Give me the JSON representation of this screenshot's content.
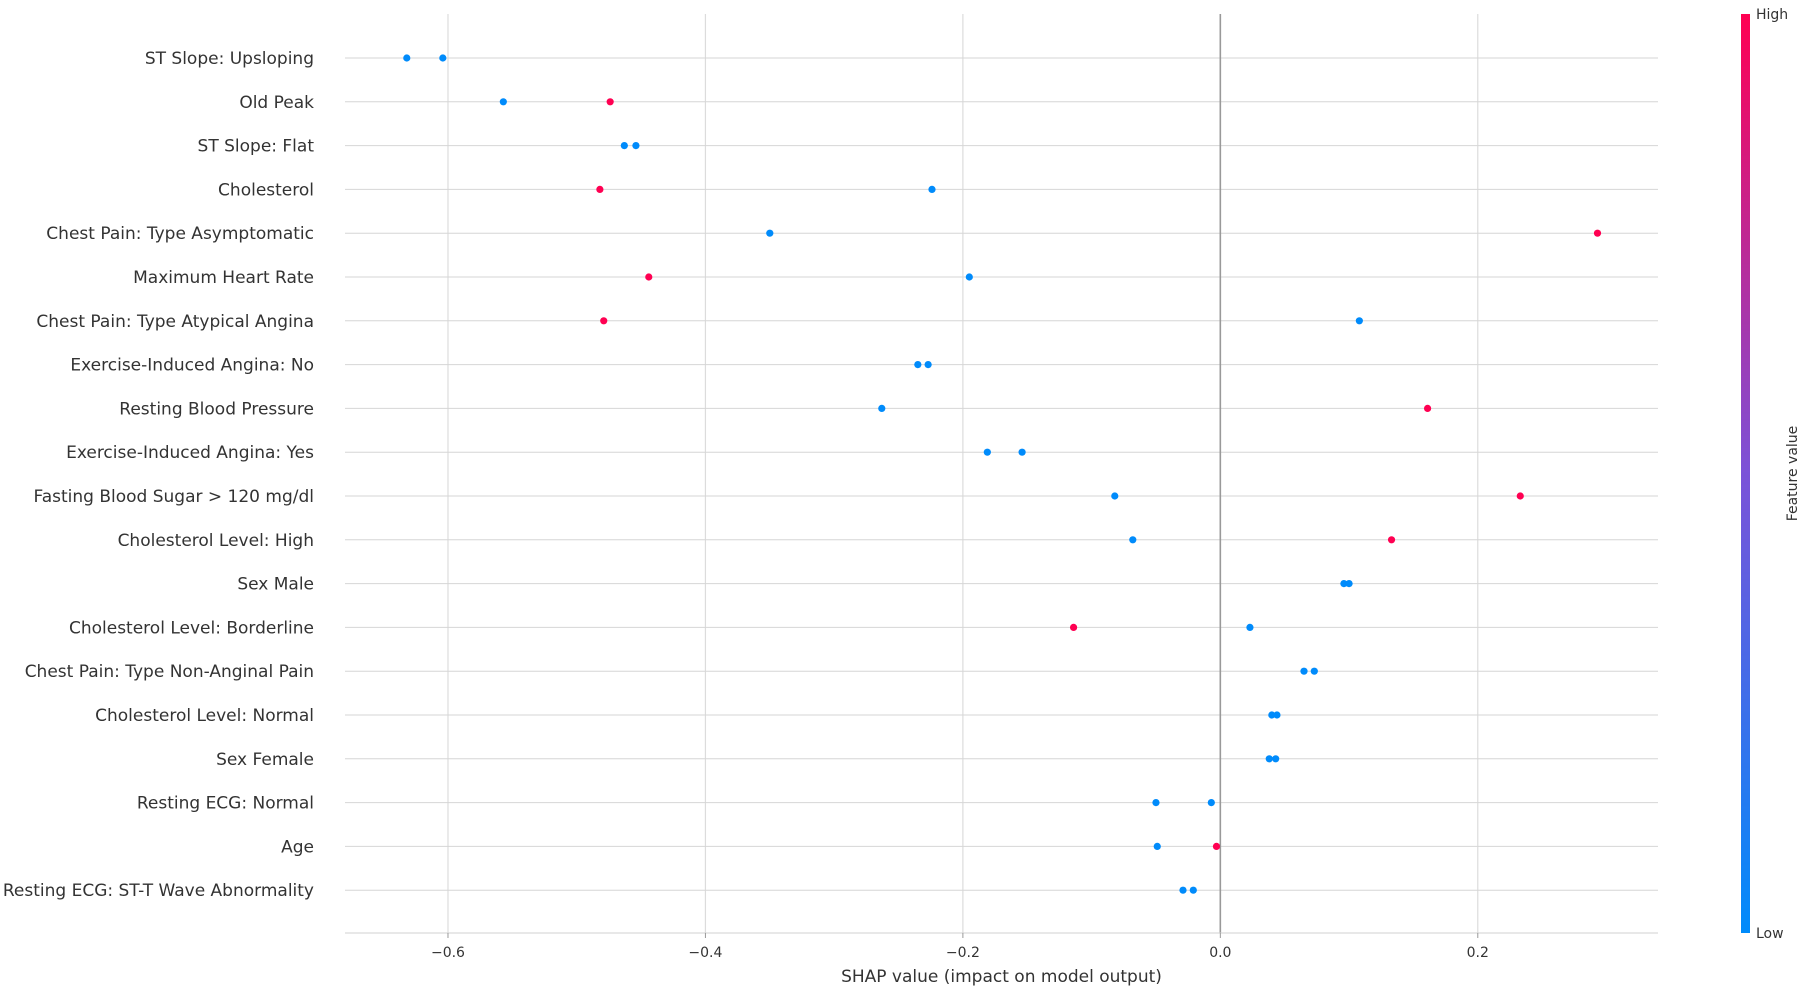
{
  "chart_data": {
    "type": "scatter",
    "xlabel": "SHAP value (impact on model output)",
    "xlim": [
      -0.68,
      0.34
    ],
    "xticks": [
      -0.6,
      -0.4,
      -0.2,
      0.0,
      0.2
    ],
    "xtick_labels": [
      "−0.6",
      "−0.4",
      "−0.2",
      "0.0",
      "0.2"
    ],
    "grid": true,
    "zero_line": 0.0,
    "colorbar": {
      "label": "Feature value",
      "high_label": "High",
      "low_label": "Low",
      "high_color": "#ff0052",
      "low_color": "#008bfb",
      "mid_color": "#7b52d8"
    },
    "features": [
      {
        "name": "ST Slope: Upsloping",
        "points": [
          {
            "x": -0.632,
            "v": 0
          },
          {
            "x": -0.604,
            "v": 0
          }
        ]
      },
      {
        "name": "Old Peak",
        "points": [
          {
            "x": -0.557,
            "v": 0
          },
          {
            "x": -0.474,
            "v": 1
          }
        ]
      },
      {
        "name": "ST Slope: Flat",
        "points": [
          {
            "x": -0.463,
            "v": 0
          },
          {
            "x": -0.454,
            "v": 0
          }
        ]
      },
      {
        "name": "Cholesterol",
        "points": [
          {
            "x": -0.482,
            "v": 1
          },
          {
            "x": -0.224,
            "v": 0
          }
        ]
      },
      {
        "name": "Chest Pain: Type Asymptomatic",
        "points": [
          {
            "x": -0.35,
            "v": 0
          },
          {
            "x": 0.293,
            "v": 1
          }
        ]
      },
      {
        "name": "Maximum Heart Rate",
        "points": [
          {
            "x": -0.444,
            "v": 1
          },
          {
            "x": -0.195,
            "v": 0
          }
        ]
      },
      {
        "name": "Chest Pain: Type Atypical Angina",
        "points": [
          {
            "x": -0.479,
            "v": 1
          },
          {
            "x": 0.108,
            "v": 0
          }
        ]
      },
      {
        "name": "Exercise-Induced Angina: No",
        "points": [
          {
            "x": -0.235,
            "v": 0
          },
          {
            "x": -0.227,
            "v": 0
          }
        ]
      },
      {
        "name": "Resting Blood Pressure",
        "points": [
          {
            "x": -0.263,
            "v": 0
          },
          {
            "x": 0.161,
            "v": 1
          }
        ]
      },
      {
        "name": "Exercise-Induced Angina: Yes",
        "points": [
          {
            "x": -0.181,
            "v": 0
          },
          {
            "x": -0.154,
            "v": 0
          }
        ]
      },
      {
        "name": "Fasting Blood Sugar > 120 mg/dl",
        "points": [
          {
            "x": -0.082,
            "v": 0
          },
          {
            "x": 0.233,
            "v": 1
          }
        ]
      },
      {
        "name": "Cholesterol Level: High",
        "points": [
          {
            "x": -0.068,
            "v": 0
          },
          {
            "x": 0.133,
            "v": 1
          }
        ]
      },
      {
        "name": "Sex Male",
        "points": [
          {
            "x": 0.096,
            "v": 0
          },
          {
            "x": 0.1,
            "v": 0
          }
        ]
      },
      {
        "name": "Cholesterol Level: Borderline",
        "points": [
          {
            "x": -0.114,
            "v": 1
          },
          {
            "x": 0.023,
            "v": 0
          }
        ]
      },
      {
        "name": "Chest Pain: Type Non-Anginal Pain",
        "points": [
          {
            "x": 0.065,
            "v": 0
          },
          {
            "x": 0.073,
            "v": 0
          }
        ]
      },
      {
        "name": "Cholesterol Level: Normal",
        "points": [
          {
            "x": 0.04,
            "v": 0
          },
          {
            "x": 0.044,
            "v": 0
          }
        ]
      },
      {
        "name": "Sex Female",
        "points": [
          {
            "x": 0.038,
            "v": 0
          },
          {
            "x": 0.043,
            "v": 0
          }
        ]
      },
      {
        "name": "Resting ECG: Normal",
        "points": [
          {
            "x": -0.05,
            "v": 0
          },
          {
            "x": -0.007,
            "v": 0
          }
        ]
      },
      {
        "name": "Age",
        "points": [
          {
            "x": -0.049,
            "v": 0
          },
          {
            "x": -0.003,
            "v": 1
          }
        ]
      },
      {
        "name": "Resting ECG: ST-T Wave Abnormality",
        "points": [
          {
            "x": -0.029,
            "v": 0
          },
          {
            "x": -0.021,
            "v": 0
          }
        ]
      }
    ]
  }
}
